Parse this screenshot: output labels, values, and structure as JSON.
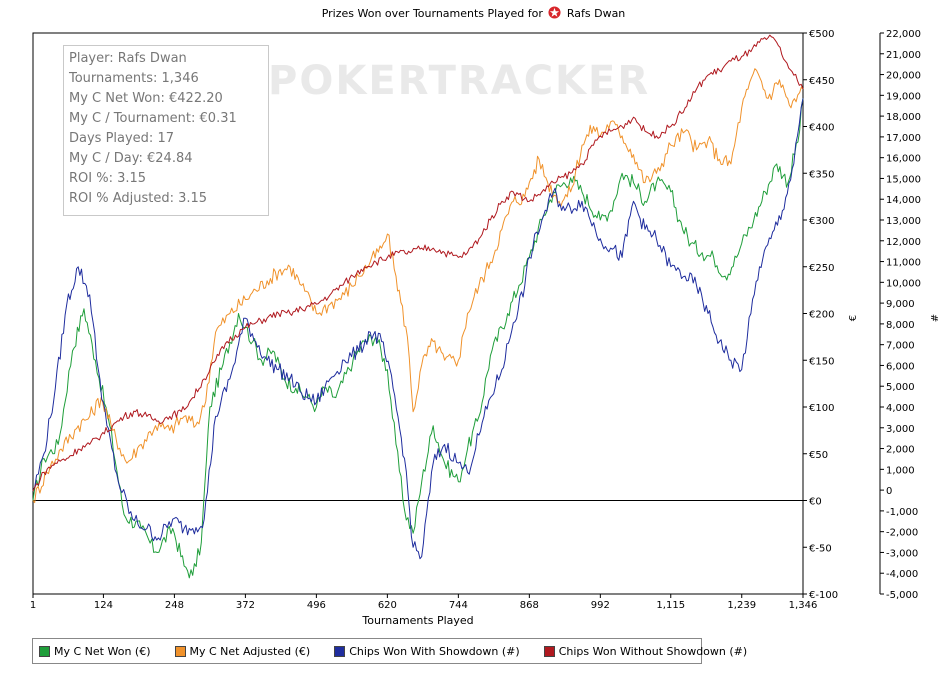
{
  "chart_data": {
    "type": "line",
    "title": "Prizes Won over Tournaments Played for Rafs Dwan",
    "player_name": "Rafs Dwan",
    "title_prefix": "Prizes Won over Tournaments Played for",
    "xlabel": "Tournaments Played",
    "ylabel_left": "€",
    "ylabel_right": "#",
    "xlim": [
      1,
      1346
    ],
    "ylim_left": [
      -100,
      500
    ],
    "ylim_right": [
      -5000,
      22000
    ],
    "x_ticks": [
      "1",
      "124",
      "248",
      "372",
      "496",
      "620",
      "744",
      "868",
      "992",
      "1,115",
      "1,239",
      "1,346"
    ],
    "x_tick_values": [
      1,
      124,
      248,
      372,
      496,
      620,
      744,
      868,
      992,
      1115,
      1239,
      1346
    ],
    "y_left_ticks": [
      "€-100",
      "€-50",
      "€0",
      "€50",
      "€100",
      "€150",
      "€200",
      "€250",
      "€300",
      "€350",
      "€400",
      "€450",
      "€500"
    ],
    "y_right_ticks": [
      "-5,000",
      "-4,000",
      "-3,000",
      "-2,000",
      "-1,000",
      "0",
      "1,000",
      "2,000",
      "3,000",
      "4,000",
      "5,000",
      "6,000",
      "7,000",
      "8,000",
      "9,000",
      "10,000",
      "11,000",
      "12,000",
      "13,000",
      "14,000",
      "15,000",
      "16,000",
      "17,000",
      "18,000",
      "19,000",
      "20,000",
      "21,000",
      "22,000"
    ],
    "legend_position": "bottom-left",
    "series": [
      {
        "name": "My C Net Won (€)",
        "color": "#1f9e3a",
        "axis": "left",
        "x": [
          1,
          20,
          45,
          70,
          90,
          110,
          135,
          160,
          190,
          215,
          245,
          265,
          280,
          295,
          310,
          330,
          360,
          372,
          385,
          400,
          420,
          440,
          460,
          480,
          496,
          510,
          530,
          560,
          580,
          600,
          620,
          635,
          650,
          665,
          680,
          700,
          720,
          744,
          760,
          780,
          800,
          830,
          850,
          868,
          890,
          910,
          940,
          960,
          992,
          1010,
          1030,
          1050,
          1070,
          1090,
          1115,
          1130,
          1150,
          1170,
          1190,
          1210,
          1230,
          1239,
          1260,
          1280,
          1300,
          1320,
          1340,
          1346
        ],
        "y": [
          0,
          45,
          60,
          160,
          205,
          150,
          80,
          -15,
          -30,
          -55,
          -30,
          -70,
          -80,
          -45,
          100,
          140,
          200,
          185,
          170,
          150,
          160,
          130,
          120,
          110,
          100,
          120,
          110,
          150,
          170,
          175,
          140,
          60,
          -10,
          -35,
          20,
          80,
          40,
          20,
          55,
          90,
          155,
          200,
          230,
          260,
          300,
          330,
          345,
          330,
          300,
          310,
          350,
          340,
          320,
          340,
          330,
          300,
          275,
          265,
          260,
          240,
          260,
          275,
          300,
          330,
          360,
          340,
          395,
          430
        ]
      },
      {
        "name": "My C Net Adjusted (€)",
        "color": "#f0922b",
        "axis": "left",
        "x": [
          1,
          25,
          50,
          80,
          100,
          120,
          140,
          165,
          190,
          215,
          240,
          265,
          285,
          300,
          320,
          345,
          372,
          390,
          410,
          430,
          450,
          470,
          496,
          520,
          545,
          570,
          590,
          610,
          620,
          635,
          655,
          665,
          680,
          700,
          720,
          744,
          760,
          780,
          800,
          820,
          840,
          860,
          868,
          885,
          900,
          920,
          940,
          960,
          980,
          992,
          1010,
          1030,
          1050,
          1070,
          1090,
          1115,
          1140,
          1160,
          1180,
          1200,
          1220,
          1239,
          1250,
          1265,
          1285,
          1305,
          1325,
          1346
        ],
        "y": [
          0,
          30,
          55,
          80,
          90,
          110,
          75,
          40,
          60,
          80,
          75,
          90,
          80,
          100,
          180,
          200,
          215,
          225,
          235,
          245,
          250,
          230,
          200,
          210,
          220,
          240,
          255,
          270,
          285,
          240,
          175,
          95,
          145,
          170,
          150,
          150,
          200,
          230,
          255,
          290,
          320,
          325,
          340,
          365,
          340,
          320,
          330,
          380,
          400,
          390,
          405,
          390,
          370,
          340,
          350,
          380,
          395,
          375,
          385,
          365,
          360,
          420,
          440,
          460,
          430,
          450,
          420,
          440
        ]
      },
      {
        "name": "Chips Won With Showdown (#)",
        "color": "#1f2d9e",
        "axis": "left",
        "x": [
          1,
          20,
          40,
          60,
          80,
          100,
          115,
          130,
          150,
          175,
          200,
          220,
          245,
          265,
          280,
          300,
          320,
          345,
          372,
          390,
          410,
          430,
          450,
          470,
          496,
          520,
          545,
          570,
          590,
          610,
          630,
          650,
          665,
          680,
          700,
          720,
          744,
          760,
          780,
          800,
          820,
          840,
          860,
          868,
          890,
          910,
          930,
          960,
          992,
          1010,
          1030,
          1050,
          1070,
          1090,
          1115,
          1140,
          1160,
          1180,
          1200,
          1220,
          1239,
          1255,
          1270,
          1290,
          1310,
          1330,
          1346
        ],
        "y": [
          10,
          50,
          120,
          210,
          250,
          220,
          140,
          80,
          20,
          -20,
          -30,
          -40,
          -20,
          -30,
          -30,
          -20,
          90,
          130,
          195,
          170,
          150,
          140,
          130,
          115,
          105,
          130,
          150,
          160,
          180,
          170,
          120,
          45,
          -50,
          -60,
          40,
          60,
          40,
          30,
          70,
          110,
          140,
          190,
          230,
          260,
          300,
          330,
          310,
          320,
          280,
          270,
          260,
          320,
          290,
          280,
          250,
          240,
          230,
          200,
          170,
          150,
          140,
          200,
          250,
          280,
          310,
          360,
          430
        ]
      },
      {
        "name": "Chips Won Without Showdown (#)",
        "color": "#b0191f",
        "axis": "left",
        "x": [
          1,
          20,
          40,
          60,
          80,
          100,
          120,
          140,
          160,
          180,
          200,
          220,
          240,
          260,
          280,
          300,
          320,
          340,
          372,
          390,
          410,
          430,
          450,
          470,
          496,
          520,
          540,
          560,
          580,
          600,
          620,
          640,
          660,
          680,
          700,
          720,
          744,
          760,
          780,
          800,
          820,
          840,
          868,
          890,
          910,
          940,
          960,
          980,
          992,
          1010,
          1030,
          1050,
          1070,
          1090,
          1115,
          1140,
          1160,
          1180,
          1200,
          1220,
          1239,
          1255,
          1270,
          1285,
          1300,
          1315,
          1330,
          1346
        ],
        "y": [
          10,
          30,
          40,
          45,
          55,
          60,
          70,
          80,
          90,
          95,
          90,
          85,
          90,
          95,
          110,
          130,
          150,
          170,
          185,
          190,
          195,
          200,
          200,
          205,
          210,
          220,
          230,
          240,
          250,
          255,
          260,
          265,
          265,
          270,
          270,
          265,
          260,
          265,
          280,
          300,
          320,
          330,
          320,
          330,
          340,
          350,
          360,
          380,
          390,
          395,
          400,
          410,
          395,
          390,
          400,
          420,
          440,
          455,
          460,
          470,
          475,
          480,
          490,
          495,
          490,
          470,
          455,
          440
        ]
      }
    ]
  },
  "stats": {
    "player": "Player: Rafs Dwan",
    "tournaments": "Tournaments: 1,346",
    "net_won": "My C Net Won: €422.20",
    "per_tournament": "My C / Tournament: €0.31",
    "days_played": "Days Played: 17",
    "per_day": "My C / Day: €24.84",
    "roi": "ROI %: 3.15",
    "roi_adjusted": "ROI % Adjusted: 3.15"
  },
  "watermark": "POKERTRACKER"
}
